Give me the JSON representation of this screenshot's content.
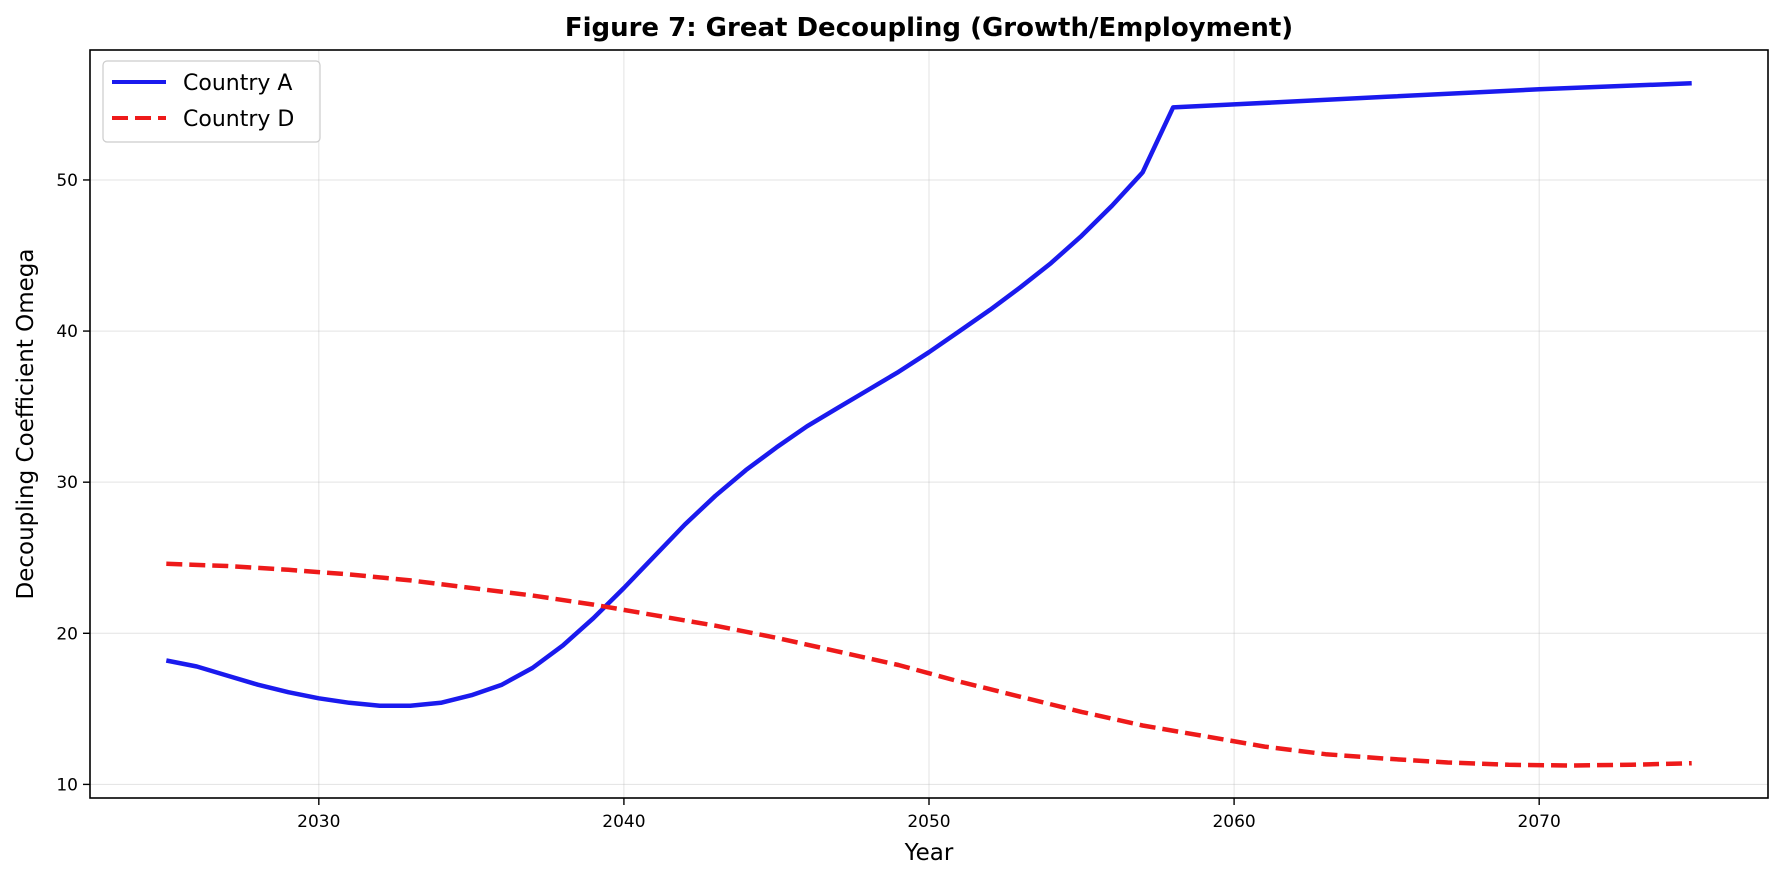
{
  "chart_data": {
    "type": "line",
    "title": "Figure 7: Great Decoupling (Growth/Employment)",
    "xlabel": "Year",
    "ylabel": "Decoupling Coefficient Omega",
    "xlim": [
      2022.5,
      2077.5
    ],
    "ylim": [
      9.1,
      58.6
    ],
    "xticks": [
      2030,
      2040,
      2050,
      2060,
      2070
    ],
    "yticks": [
      10,
      20,
      30,
      40,
      50
    ],
    "grid": true,
    "legend_position": "top-left",
    "series": [
      {
        "name": "Country A",
        "color": "#1a1aee",
        "dash": "solid",
        "x": [
          2025,
          2026,
          2027,
          2028,
          2029,
          2030,
          2031,
          2032,
          2033,
          2034,
          2035,
          2036,
          2037,
          2038,
          2039,
          2040,
          2041,
          2042,
          2043,
          2044,
          2045,
          2046,
          2047,
          2048,
          2049,
          2050,
          2051,
          2052,
          2053,
          2054,
          2055,
          2056,
          2057,
          2058,
          2060,
          2065,
          2070,
          2075
        ],
        "y": [
          18.2,
          17.8,
          17.2,
          16.6,
          16.1,
          15.7,
          15.4,
          15.2,
          15.2,
          15.4,
          15.9,
          16.6,
          17.7,
          19.2,
          21.0,
          23.0,
          25.1,
          27.2,
          29.1,
          30.8,
          32.3,
          33.7,
          34.9,
          36.1,
          37.3,
          38.6,
          40.0,
          41.4,
          42.9,
          44.5,
          46.3,
          48.3,
          50.5,
          54.8,
          55.0,
          55.5,
          56.0,
          56.4
        ]
      },
      {
        "name": "Country D",
        "color": "#ee1a1a",
        "dash": "dashed",
        "x": [
          2025,
          2027,
          2029,
          2031,
          2033,
          2035,
          2037,
          2039,
          2041,
          2043,
          2045,
          2047,
          2049,
          2051,
          2053,
          2055,
          2057,
          2059,
          2061,
          2063,
          2065,
          2067,
          2069,
          2071,
          2073,
          2075
        ],
        "y": [
          24.6,
          24.45,
          24.2,
          23.9,
          23.5,
          23.0,
          22.5,
          21.9,
          21.2,
          20.5,
          19.7,
          18.8,
          17.9,
          16.8,
          15.8,
          14.8,
          13.9,
          13.2,
          12.5,
          12.0,
          11.7,
          11.45,
          11.3,
          11.25,
          11.3,
          11.4
        ]
      }
    ]
  }
}
